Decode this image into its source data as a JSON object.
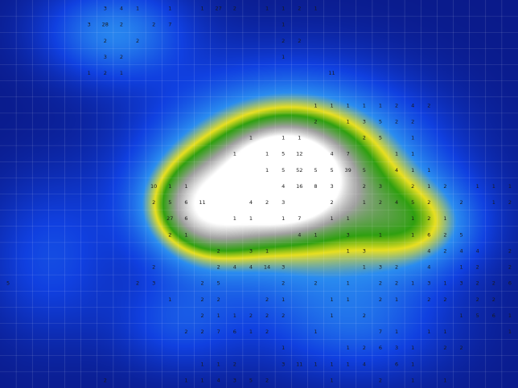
{
  "chart_data": {
    "type": "heatmap",
    "title": "",
    "xlabel": "",
    "ylabel": "",
    "columns": 32,
    "rows": 24,
    "grid": true,
    "colorscale": [
      "#0a1a8a",
      "#1040e0",
      "#2a8cf0",
      "#e8e020",
      "#30a010",
      "#a0a0a0",
      "#ffffff"
    ],
    "blobs": [
      {
        "cx": 18.0,
        "cy": 11.0,
        "rx": 7.5,
        "ry": 5.5,
        "amp": 0.95
      },
      {
        "cx": 17.5,
        "cy": 11.0,
        "rx": 2.6,
        "ry": 2.2,
        "amp": 1.0
      },
      {
        "cx": 12.5,
        "cy": 13.0,
        "rx": 3.5,
        "ry": 3.0,
        "amp": 0.55
      },
      {
        "cx": 7.0,
        "cy": 2.0,
        "rx": 4.5,
        "ry": 3.0,
        "amp": 0.35
      },
      {
        "cx": 26.0,
        "cy": 14.0,
        "rx": 4.0,
        "ry": 3.0,
        "amp": 0.35
      },
      {
        "cx": 3.0,
        "cy": 16.0,
        "rx": 4.0,
        "ry": 5.0,
        "amp": 0.2
      },
      {
        "cx": 22.0,
        "cy": 20.0,
        "rx": 6.0,
        "ry": 3.5,
        "amp": 0.25
      },
      {
        "cx": 11.0,
        "cy": 20.0,
        "rx": 4.0,
        "ry": 3.0,
        "amp": 0.2
      }
    ],
    "labels": [
      {
        "col": 6,
        "row": 0,
        "v": "3"
      },
      {
        "col": 7,
        "row": 0,
        "v": "4"
      },
      {
        "col": 8,
        "row": 0,
        "v": "1"
      },
      {
        "col": 10,
        "row": 0,
        "v": "1"
      },
      {
        "col": 12,
        "row": 0,
        "v": "1"
      },
      {
        "col": 13,
        "row": 0,
        "v": "27"
      },
      {
        "col": 14,
        "row": 0,
        "v": "2"
      },
      {
        "col": 16,
        "row": 0,
        "v": "1"
      },
      {
        "col": 17,
        "row": 0,
        "v": "1"
      },
      {
        "col": 18,
        "row": 0,
        "v": "2"
      },
      {
        "col": 19,
        "row": 0,
        "v": "1"
      },
      {
        "col": 5,
        "row": 1,
        "v": "3"
      },
      {
        "col": 6,
        "row": 1,
        "v": "28"
      },
      {
        "col": 7,
        "row": 1,
        "v": "2"
      },
      {
        "col": 9,
        "row": 1,
        "v": "2"
      },
      {
        "col": 10,
        "row": 1,
        "v": "7"
      },
      {
        "col": 17,
        "row": 1,
        "v": "1"
      },
      {
        "col": 6,
        "row": 2,
        "v": "2"
      },
      {
        "col": 8,
        "row": 2,
        "v": "2"
      },
      {
        "col": 17,
        "row": 2,
        "v": "2"
      },
      {
        "col": 18,
        "row": 2,
        "v": "2"
      },
      {
        "col": 6,
        "row": 3,
        "v": "3"
      },
      {
        "col": 7,
        "row": 3,
        "v": "2"
      },
      {
        "col": 17,
        "row": 3,
        "v": "1"
      },
      {
        "col": 5,
        "row": 4,
        "v": "1"
      },
      {
        "col": 6,
        "row": 4,
        "v": "2"
      },
      {
        "col": 7,
        "row": 4,
        "v": "1"
      },
      {
        "col": 20,
        "row": 4,
        "v": "11"
      },
      {
        "col": 19,
        "row": 6,
        "v": "1"
      },
      {
        "col": 20,
        "row": 6,
        "v": "1"
      },
      {
        "col": 21,
        "row": 6,
        "v": "1"
      },
      {
        "col": 22,
        "row": 6,
        "v": "1"
      },
      {
        "col": 23,
        "row": 6,
        "v": "1"
      },
      {
        "col": 24,
        "row": 6,
        "v": "2"
      },
      {
        "col": 25,
        "row": 6,
        "v": "4"
      },
      {
        "col": 26,
        "row": 6,
        "v": "2"
      },
      {
        "col": 19,
        "row": 7,
        "v": "2"
      },
      {
        "col": 21,
        "row": 7,
        "v": "1"
      },
      {
        "col": 22,
        "row": 7,
        "v": "3"
      },
      {
        "col": 23,
        "row": 7,
        "v": "5"
      },
      {
        "col": 24,
        "row": 7,
        "v": "2"
      },
      {
        "col": 25,
        "row": 7,
        "v": "2"
      },
      {
        "col": 15,
        "row": 8,
        "v": "1"
      },
      {
        "col": 17,
        "row": 8,
        "v": "1"
      },
      {
        "col": 18,
        "row": 8,
        "v": "1"
      },
      {
        "col": 22,
        "row": 8,
        "v": "2"
      },
      {
        "col": 23,
        "row": 8,
        "v": "5"
      },
      {
        "col": 25,
        "row": 8,
        "v": "1"
      },
      {
        "col": 14,
        "row": 9,
        "v": "1"
      },
      {
        "col": 16,
        "row": 9,
        "v": "1"
      },
      {
        "col": 17,
        "row": 9,
        "v": "5"
      },
      {
        "col": 18,
        "row": 9,
        "v": "12"
      },
      {
        "col": 20,
        "row": 9,
        "v": "4"
      },
      {
        "col": 21,
        "row": 9,
        "v": "7"
      },
      {
        "col": 24,
        "row": 9,
        "v": "1"
      },
      {
        "col": 25,
        "row": 9,
        "v": "1"
      },
      {
        "col": 16,
        "row": 10,
        "v": "1"
      },
      {
        "col": 17,
        "row": 10,
        "v": "5"
      },
      {
        "col": 18,
        "row": 10,
        "v": "52"
      },
      {
        "col": 19,
        "row": 10,
        "v": "5"
      },
      {
        "col": 20,
        "row": 10,
        "v": "5"
      },
      {
        "col": 21,
        "row": 10,
        "v": "39"
      },
      {
        "col": 22,
        "row": 10,
        "v": "5"
      },
      {
        "col": 24,
        "row": 10,
        "v": "4"
      },
      {
        "col": 25,
        "row": 10,
        "v": "1"
      },
      {
        "col": 26,
        "row": 10,
        "v": "1"
      },
      {
        "col": 9,
        "row": 11,
        "v": "10"
      },
      {
        "col": 10,
        "row": 11,
        "v": "1"
      },
      {
        "col": 11,
        "row": 11,
        "v": "1"
      },
      {
        "col": 17,
        "row": 11,
        "v": "4"
      },
      {
        "col": 18,
        "row": 11,
        "v": "16"
      },
      {
        "col": 19,
        "row": 11,
        "v": "8"
      },
      {
        "col": 20,
        "row": 11,
        "v": "3"
      },
      {
        "col": 22,
        "row": 11,
        "v": "2"
      },
      {
        "col": 23,
        "row": 11,
        "v": "3"
      },
      {
        "col": 25,
        "row": 11,
        "v": "2"
      },
      {
        "col": 26,
        "row": 11,
        "v": "1"
      },
      {
        "col": 27,
        "row": 11,
        "v": "2"
      },
      {
        "col": 29,
        "row": 11,
        "v": "1"
      },
      {
        "col": 30,
        "row": 11,
        "v": "1"
      },
      {
        "col": 31,
        "row": 11,
        "v": "1"
      },
      {
        "col": 9,
        "row": 12,
        "v": "2"
      },
      {
        "col": 10,
        "row": 12,
        "v": "5"
      },
      {
        "col": 11,
        "row": 12,
        "v": "6"
      },
      {
        "col": 12,
        "row": 12,
        "v": "11"
      },
      {
        "col": 15,
        "row": 12,
        "v": "4"
      },
      {
        "col": 16,
        "row": 12,
        "v": "2"
      },
      {
        "col": 17,
        "row": 12,
        "v": "3"
      },
      {
        "col": 20,
        "row": 12,
        "v": "2"
      },
      {
        "col": 22,
        "row": 12,
        "v": "1"
      },
      {
        "col": 23,
        "row": 12,
        "v": "2"
      },
      {
        "col": 24,
        "row": 12,
        "v": "4"
      },
      {
        "col": 25,
        "row": 12,
        "v": "5"
      },
      {
        "col": 26,
        "row": 12,
        "v": "2"
      },
      {
        "col": 28,
        "row": 12,
        "v": "2"
      },
      {
        "col": 30,
        "row": 12,
        "v": "1"
      },
      {
        "col": 31,
        "row": 12,
        "v": "2"
      },
      {
        "col": 10,
        "row": 13,
        "v": "27"
      },
      {
        "col": 11,
        "row": 13,
        "v": "6"
      },
      {
        "col": 14,
        "row": 13,
        "v": "1"
      },
      {
        "col": 15,
        "row": 13,
        "v": "1"
      },
      {
        "col": 17,
        "row": 13,
        "v": "1"
      },
      {
        "col": 18,
        "row": 13,
        "v": "7"
      },
      {
        "col": 20,
        "row": 13,
        "v": "1"
      },
      {
        "col": 21,
        "row": 13,
        "v": "1"
      },
      {
        "col": 25,
        "row": 13,
        "v": "1"
      },
      {
        "col": 26,
        "row": 13,
        "v": "2"
      },
      {
        "col": 27,
        "row": 13,
        "v": "1"
      },
      {
        "col": 10,
        "row": 14,
        "v": "2"
      },
      {
        "col": 11,
        "row": 14,
        "v": "1"
      },
      {
        "col": 18,
        "row": 14,
        "v": "4"
      },
      {
        "col": 19,
        "row": 14,
        "v": "1"
      },
      {
        "col": 21,
        "row": 14,
        "v": "3"
      },
      {
        "col": 23,
        "row": 14,
        "v": "1"
      },
      {
        "col": 25,
        "row": 14,
        "v": "1"
      },
      {
        "col": 26,
        "row": 14,
        "v": "6"
      },
      {
        "col": 27,
        "row": 14,
        "v": "2"
      },
      {
        "col": 28,
        "row": 14,
        "v": "5"
      },
      {
        "col": 13,
        "row": 15,
        "v": "2"
      },
      {
        "col": 15,
        "row": 15,
        "v": "3"
      },
      {
        "col": 16,
        "row": 15,
        "v": "1"
      },
      {
        "col": 21,
        "row": 15,
        "v": "1"
      },
      {
        "col": 22,
        "row": 15,
        "v": "3"
      },
      {
        "col": 26,
        "row": 15,
        "v": "4"
      },
      {
        "col": 27,
        "row": 15,
        "v": "2"
      },
      {
        "col": 28,
        "row": 15,
        "v": "4"
      },
      {
        "col": 29,
        "row": 15,
        "v": "4"
      },
      {
        "col": 31,
        "row": 15,
        "v": "2"
      },
      {
        "col": 9,
        "row": 16,
        "v": "2"
      },
      {
        "col": 13,
        "row": 16,
        "v": "2"
      },
      {
        "col": 14,
        "row": 16,
        "v": "4"
      },
      {
        "col": 15,
        "row": 16,
        "v": "4"
      },
      {
        "col": 16,
        "row": 16,
        "v": "14"
      },
      {
        "col": 17,
        "row": 16,
        "v": "3"
      },
      {
        "col": 22,
        "row": 16,
        "v": "1"
      },
      {
        "col": 23,
        "row": 16,
        "v": "3"
      },
      {
        "col": 24,
        "row": 16,
        "v": "2"
      },
      {
        "col": 26,
        "row": 16,
        "v": "4"
      },
      {
        "col": 28,
        "row": 16,
        "v": "1"
      },
      {
        "col": 29,
        "row": 16,
        "v": "2"
      },
      {
        "col": 31,
        "row": 16,
        "v": "2"
      },
      {
        "col": 0,
        "row": 17,
        "v": "5"
      },
      {
        "col": 8,
        "row": 17,
        "v": "2"
      },
      {
        "col": 9,
        "row": 17,
        "v": "3"
      },
      {
        "col": 12,
        "row": 17,
        "v": "2"
      },
      {
        "col": 13,
        "row": 17,
        "v": "5"
      },
      {
        "col": 17,
        "row": 17,
        "v": "2"
      },
      {
        "col": 19,
        "row": 17,
        "v": "2"
      },
      {
        "col": 21,
        "row": 17,
        "v": "1"
      },
      {
        "col": 23,
        "row": 17,
        "v": "2"
      },
      {
        "col": 24,
        "row": 17,
        "v": "2"
      },
      {
        "col": 25,
        "row": 17,
        "v": "1"
      },
      {
        "col": 26,
        "row": 17,
        "v": "3"
      },
      {
        "col": 27,
        "row": 17,
        "v": "1"
      },
      {
        "col": 28,
        "row": 17,
        "v": "3"
      },
      {
        "col": 29,
        "row": 17,
        "v": "2"
      },
      {
        "col": 30,
        "row": 17,
        "v": "2"
      },
      {
        "col": 31,
        "row": 17,
        "v": "6"
      },
      {
        "col": 10,
        "row": 18,
        "v": "1"
      },
      {
        "col": 12,
        "row": 18,
        "v": "2"
      },
      {
        "col": 13,
        "row": 18,
        "v": "2"
      },
      {
        "col": 16,
        "row": 18,
        "v": "2"
      },
      {
        "col": 17,
        "row": 18,
        "v": "1"
      },
      {
        "col": 20,
        "row": 18,
        "v": "1"
      },
      {
        "col": 21,
        "row": 18,
        "v": "1"
      },
      {
        "col": 23,
        "row": 18,
        "v": "2"
      },
      {
        "col": 24,
        "row": 18,
        "v": "1"
      },
      {
        "col": 26,
        "row": 18,
        "v": "2"
      },
      {
        "col": 27,
        "row": 18,
        "v": "2"
      },
      {
        "col": 29,
        "row": 18,
        "v": "2"
      },
      {
        "col": 30,
        "row": 18,
        "v": "2"
      },
      {
        "col": 12,
        "row": 19,
        "v": "2"
      },
      {
        "col": 13,
        "row": 19,
        "v": "1"
      },
      {
        "col": 14,
        "row": 19,
        "v": "1"
      },
      {
        "col": 15,
        "row": 19,
        "v": "2"
      },
      {
        "col": 16,
        "row": 19,
        "v": "2"
      },
      {
        "col": 17,
        "row": 19,
        "v": "2"
      },
      {
        "col": 20,
        "row": 19,
        "v": "1"
      },
      {
        "col": 22,
        "row": 19,
        "v": "2"
      },
      {
        "col": 28,
        "row": 19,
        "v": "1"
      },
      {
        "col": 29,
        "row": 19,
        "v": "5"
      },
      {
        "col": 30,
        "row": 19,
        "v": "6"
      },
      {
        "col": 31,
        "row": 19,
        "v": "1"
      },
      {
        "col": 11,
        "row": 20,
        "v": "2"
      },
      {
        "col": 12,
        "row": 20,
        "v": "2"
      },
      {
        "col": 13,
        "row": 20,
        "v": "7"
      },
      {
        "col": 14,
        "row": 20,
        "v": "6"
      },
      {
        "col": 15,
        "row": 20,
        "v": "1"
      },
      {
        "col": 16,
        "row": 20,
        "v": "2"
      },
      {
        "col": 19,
        "row": 20,
        "v": "1"
      },
      {
        "col": 23,
        "row": 20,
        "v": "7"
      },
      {
        "col": 24,
        "row": 20,
        "v": "1"
      },
      {
        "col": 26,
        "row": 20,
        "v": "1"
      },
      {
        "col": 27,
        "row": 20,
        "v": "1"
      },
      {
        "col": 31,
        "row": 20,
        "v": "1"
      },
      {
        "col": 17,
        "row": 21,
        "v": "1"
      },
      {
        "col": 21,
        "row": 21,
        "v": "1"
      },
      {
        "col": 22,
        "row": 21,
        "v": "2"
      },
      {
        "col": 23,
        "row": 21,
        "v": "6"
      },
      {
        "col": 24,
        "row": 21,
        "v": "3"
      },
      {
        "col": 25,
        "row": 21,
        "v": "1"
      },
      {
        "col": 27,
        "row": 21,
        "v": "2"
      },
      {
        "col": 28,
        "row": 21,
        "v": "2"
      },
      {
        "col": 12,
        "row": 22,
        "v": "1"
      },
      {
        "col": 13,
        "row": 22,
        "v": "1"
      },
      {
        "col": 14,
        "row": 22,
        "v": "2"
      },
      {
        "col": 17,
        "row": 22,
        "v": "3"
      },
      {
        "col": 18,
        "row": 22,
        "v": "11"
      },
      {
        "col": 19,
        "row": 22,
        "v": "1"
      },
      {
        "col": 20,
        "row": 22,
        "v": "1"
      },
      {
        "col": 21,
        "row": 22,
        "v": "1"
      },
      {
        "col": 22,
        "row": 22,
        "v": "4"
      },
      {
        "col": 24,
        "row": 22,
        "v": "6"
      },
      {
        "col": 25,
        "row": 22,
        "v": "1"
      },
      {
        "col": 6,
        "row": 23,
        "v": "2"
      },
      {
        "col": 11,
        "row": 23,
        "v": "1"
      },
      {
        "col": 12,
        "row": 23,
        "v": "1"
      },
      {
        "col": 13,
        "row": 23,
        "v": "4"
      },
      {
        "col": 14,
        "row": 23,
        "v": "3"
      },
      {
        "col": 15,
        "row": 23,
        "v": "5"
      },
      {
        "col": 16,
        "row": 23,
        "v": "2"
      },
      {
        "col": 20,
        "row": 23,
        "v": "1"
      },
      {
        "col": 23,
        "row": 23,
        "v": "2"
      },
      {
        "col": 25,
        "row": 23,
        "v": "1"
      },
      {
        "col": 27,
        "row": 23,
        "v": "1"
      }
    ]
  }
}
